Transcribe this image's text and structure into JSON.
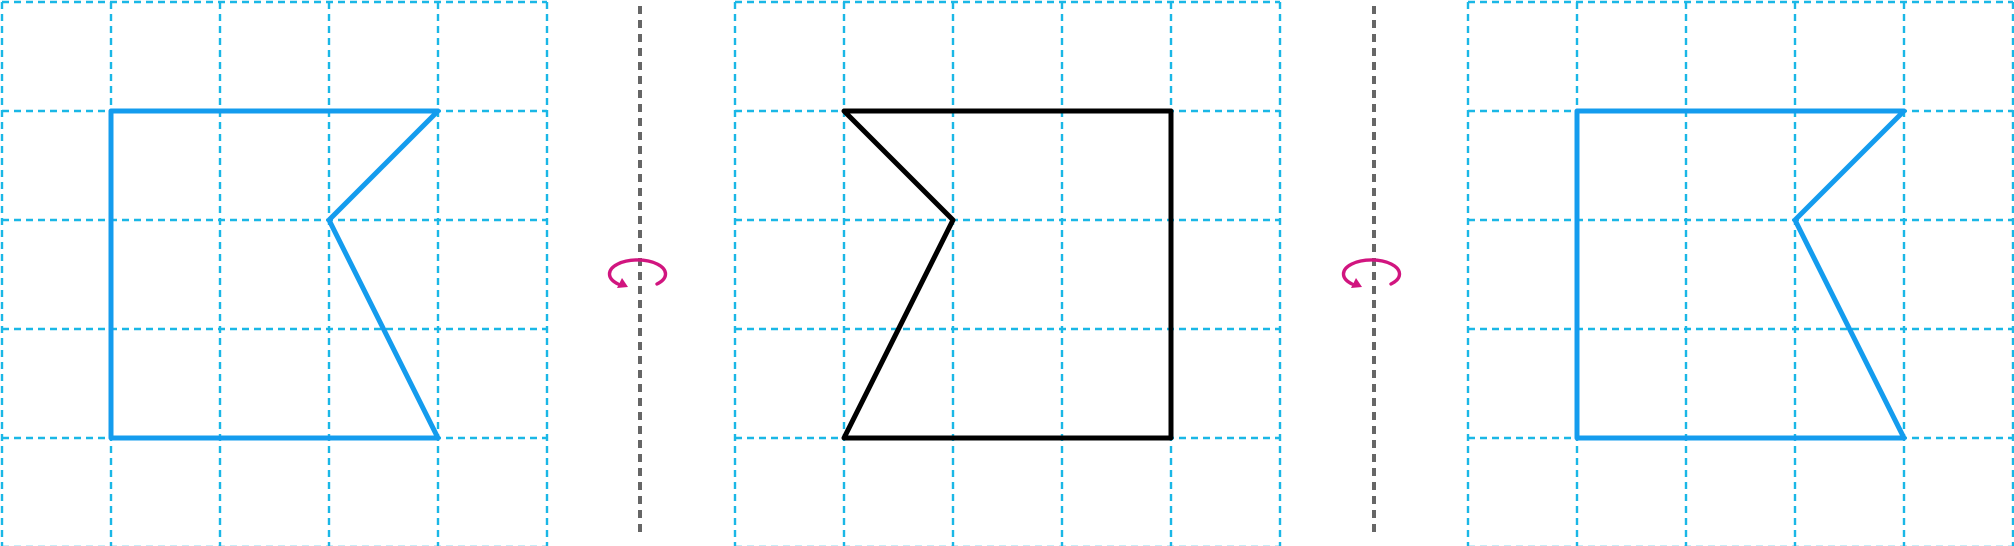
{
  "figure": {
    "grid_columns": 5,
    "grid_rows": 5,
    "colors": {
      "grid": "#1ab7e6",
      "axis": "#666666",
      "shape_blue": "#149cee",
      "shape_black": "#000000",
      "rotation_icon": "#d1157f"
    },
    "panels": [
      {
        "name": "original",
        "shape_color": "shape_blue",
        "vertices": [
          [
            1,
            1
          ],
          [
            4,
            1
          ],
          [
            3,
            2
          ],
          [
            4,
            4
          ],
          [
            1,
            4
          ]
        ]
      },
      {
        "name": "mirrored",
        "shape_color": "shape_black",
        "vertices": [
          [
            1,
            1
          ],
          [
            4,
            1
          ],
          [
            4,
            4
          ],
          [
            1,
            4
          ],
          [
            2,
            2
          ]
        ]
      },
      {
        "name": "restored",
        "shape_color": "shape_blue",
        "vertices": [
          [
            1,
            1
          ],
          [
            4,
            1
          ],
          [
            3,
            2
          ],
          [
            4,
            4
          ],
          [
            1,
            4
          ]
        ]
      }
    ],
    "separators": [
      {
        "name": "mirror-axis-1",
        "icon": "flip-rotate-icon"
      },
      {
        "name": "mirror-axis-2",
        "icon": "flip-rotate-icon"
      }
    ]
  }
}
